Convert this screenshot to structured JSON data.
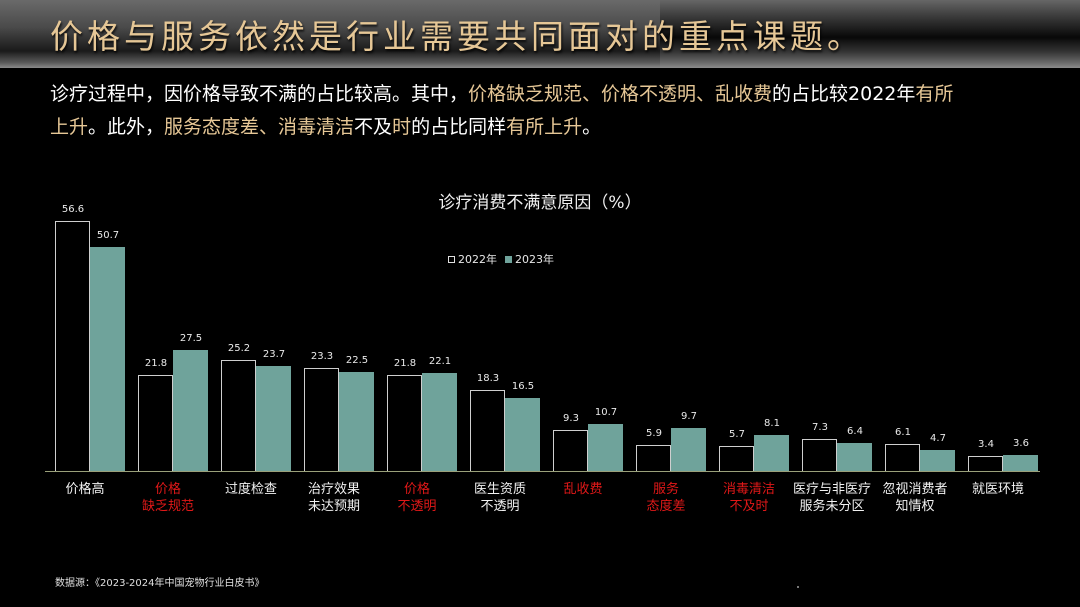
{
  "header": {
    "title": "价格与服务依然是行业需要共同面对的重点课题。"
  },
  "intro": {
    "segments": [
      {
        "text": "诊疗过程中，因价格导致不满的占比较高。其中，",
        "highlight": false
      },
      {
        "text": "价格缺乏规范、价格不透明、乱收费",
        "highlight": true
      },
      {
        "text": "的占比较2022年",
        "highlight": false
      },
      {
        "text": "有所上升",
        "highlight": true
      },
      {
        "text": "。此外，",
        "highlight": false
      },
      {
        "text": "服务态度差、消毒清洁不及时",
        "highlight": false,
        "mixed": true
      },
      {
        "text": "的占比同样",
        "highlight": false
      },
      {
        "text": "有所上升",
        "highlight": true
      },
      {
        "text": "。",
        "highlight": false
      }
    ],
    "line1_a": "诊疗过程中，因价格导致不满的占比较高。其中，",
    "line1_b": "价格缺乏规范、价格不透明、乱收费",
    "line1_c": "的占比较2022年",
    "line1_d": "有所",
    "line2_a": "上升",
    "line2_b": "。此外，",
    "line2_c": "服务态度差、消毒清洁",
    "line2_d": "不及",
    "line2_e": "时",
    "line2_f": "的占比同样",
    "line2_g": "有所上升",
    "line2_h": "。"
  },
  "colors": {
    "background": "#000000",
    "title_gold": "#e6c796",
    "series_2022_fill": "#000000",
    "series_2022_border": "#cfcfcf",
    "series_2023_fill": "#6fa39b",
    "highlight_red": "#e01818",
    "axis": "#9aa07a"
  },
  "chart_data": {
    "type": "bar",
    "title": "诊疗消费不满意原因（%）",
    "xlabel": "",
    "ylabel": "",
    "ylim": [
      0,
      60
    ],
    "grid": false,
    "legend_position": "top-center",
    "categories": [
      "价格高",
      "价格缺乏规范",
      "过度检查",
      "治疗效果未达预期",
      "价格不透明",
      "医生资质不透明",
      "乱收费",
      "服务态度差",
      "消毒清洁不及时",
      "医疗与非医疗服务未分区",
      "忽视消费者知情权",
      "就医环境"
    ],
    "category_lines": [
      [
        "价格高"
      ],
      [
        "价格",
        "缺乏规范"
      ],
      [
        "过度检查"
      ],
      [
        "治疗效果",
        "未达预期"
      ],
      [
        "价格",
        "不透明"
      ],
      [
        "医生资质",
        "不透明"
      ],
      [
        "乱收费"
      ],
      [
        "服务",
        "态度差"
      ],
      [
        "消毒清洁",
        "不及时"
      ],
      [
        "医疗与非医疗",
        "服务未分区"
      ],
      [
        "忽视消费者",
        "知情权"
      ],
      [
        "就医环境"
      ]
    ],
    "highlighted_categories": [
      "价格缺乏规范",
      "价格不透明",
      "乱收费",
      "服务态度差",
      "消毒清洁不及时"
    ],
    "series": [
      {
        "name": "2022年",
        "values": [
          56.6,
          21.8,
          25.2,
          23.3,
          21.8,
          18.3,
          9.3,
          5.9,
          5.7,
          7.3,
          6.1,
          3.4
        ]
      },
      {
        "name": "2023年",
        "values": [
          50.7,
          27.5,
          23.7,
          22.5,
          22.1,
          16.5,
          10.7,
          9.7,
          8.1,
          6.4,
          4.7,
          3.6
        ]
      }
    ]
  },
  "legend": {
    "items": [
      "2022年",
      "2023年"
    ]
  },
  "footer": {
    "source": "数据源：《2023-2024年中国宠物行业白皮书》"
  }
}
